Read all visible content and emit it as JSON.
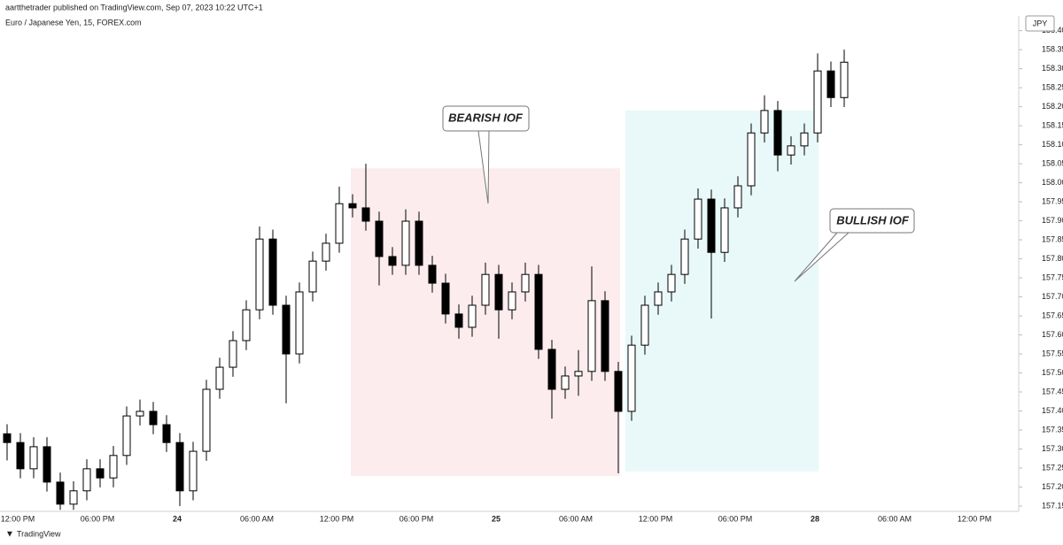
{
  "header": "aartthetrader published on TradingView.com, Sep 07, 2023 10:22 UTC+1",
  "footer": "TradingView",
  "chart_data": {
    "type": "candlestick",
    "title": "Euro / Japanese Yen, 15, FOREX.com",
    "currency": "JPY",
    "up_color": "#ffffff",
    "down_color": "#000000",
    "wick_color": "#000000",
    "open": [
      157.34,
      157.317,
      157.248,
      157.306,
      157.213,
      157.155,
      157.19,
      157.248,
      157.224,
      157.283,
      157.387,
      157.399,
      157.364,
      157.317,
      157.19,
      157.294,
      157.457,
      157.515,
      157.585,
      157.666,
      157.852,
      157.678,
      157.55,
      157.713,
      157.794,
      157.841,
      157.945,
      157.934,
      157.899,
      157.806,
      157.783,
      157.899,
      157.783,
      157.736,
      157.655,
      157.62,
      157.678,
      157.759,
      157.666,
      157.713,
      157.759,
      157.562,
      157.457,
      157.492,
      157.504,
      157.69,
      157.504,
      157.399,
      157.573,
      157.678,
      157.713,
      157.759,
      157.852,
      157.957,
      157.817,
      157.934,
      157.992,
      158.131,
      158.19,
      158.073,
      158.097,
      158.131,
      158.294,
      158.224
    ],
    "high": [
      157.365,
      157.342,
      157.331,
      157.331,
      157.238,
      157.215,
      157.273,
      157.273,
      157.308,
      157.412,
      157.43,
      157.424,
      157.389,
      157.342,
      157.319,
      157.482,
      157.54,
      157.61,
      157.691,
      157.885,
      157.877,
      157.703,
      157.738,
      157.819,
      157.866,
      157.99,
      157.97,
      158.05,
      157.924,
      157.831,
      157.93,
      157.924,
      157.808,
      157.761,
      157.68,
      157.703,
      157.79,
      157.784,
      157.738,
      157.79,
      157.784,
      157.587,
      157.517,
      157.56,
      157.78,
      157.715,
      157.529,
      157.598,
      157.703,
      157.738,
      157.784,
      157.877,
      157.985,
      157.982,
      157.959,
      158.017,
      158.156,
      158.23,
      158.215,
      158.122,
      158.156,
      158.34,
      158.319,
      158.35
    ],
    "low": [
      157.27,
      157.223,
      157.223,
      157.188,
      157.14,
      157.14,
      157.165,
      157.199,
      157.199,
      157.258,
      157.362,
      157.339,
      157.292,
      157.15,
      157.165,
      157.269,
      157.432,
      157.49,
      157.56,
      157.641,
      157.653,
      157.42,
      157.525,
      157.688,
      157.769,
      157.816,
      157.909,
      157.874,
      157.73,
      157.758,
      157.758,
      157.758,
      157.711,
      157.63,
      157.59,
      157.595,
      157.653,
      157.59,
      157.641,
      157.688,
      157.537,
      157.38,
      157.432,
      157.44,
      157.479,
      157.479,
      157.236,
      157.374,
      157.548,
      157.653,
      157.688,
      157.734,
      157.827,
      157.643,
      157.792,
      157.909,
      157.967,
      158.106,
      158.03,
      158.048,
      158.072,
      158.106,
      158.199,
      158.199
    ],
    "close": [
      157.317,
      157.248,
      157.306,
      157.213,
      157.155,
      157.19,
      157.248,
      157.224,
      157.283,
      157.387,
      157.399,
      157.364,
      157.317,
      157.19,
      157.294,
      157.457,
      157.515,
      157.585,
      157.666,
      157.852,
      157.678,
      157.55,
      157.713,
      157.794,
      157.841,
      157.945,
      157.934,
      157.899,
      157.806,
      157.783,
      157.899,
      157.783,
      157.736,
      157.655,
      157.62,
      157.678,
      157.759,
      157.666,
      157.713,
      157.759,
      157.562,
      157.457,
      157.492,
      157.504,
      157.69,
      157.504,
      157.399,
      157.573,
      157.678,
      157.713,
      157.759,
      157.852,
      157.957,
      157.817,
      157.934,
      157.992,
      158.131,
      158.19,
      158.073,
      158.097,
      158.131,
      158.294,
      158.224,
      158.317
    ],
    "ylim": [
      157.136,
      158.434
    ],
    "yticks": [
      {
        "value": 157.15,
        "label": "157.150"
      },
      {
        "value": 157.2,
        "label": "157.200"
      },
      {
        "value": 157.25,
        "label": "157.250"
      },
      {
        "value": 157.3,
        "label": "157.300"
      },
      {
        "value": 157.35,
        "label": "157.350"
      },
      {
        "value": 157.4,
        "label": "157.400"
      },
      {
        "value": 157.45,
        "label": "157.450"
      },
      {
        "value": 157.5,
        "label": "157.500"
      },
      {
        "value": 157.55,
        "label": "157.550"
      },
      {
        "value": 157.6,
        "label": "157.600"
      },
      {
        "value": 157.65,
        "label": "157.650"
      },
      {
        "value": 157.7,
        "label": "157.700"
      },
      {
        "value": 157.75,
        "label": "157.750"
      },
      {
        "value": 157.8,
        "label": "157.800"
      },
      {
        "value": 157.85,
        "label": "157.850"
      },
      {
        "value": 157.9,
        "label": "157.900"
      },
      {
        "value": 157.95,
        "label": "157.950"
      },
      {
        "value": 158.0,
        "label": "158.000"
      },
      {
        "value": 158.05,
        "label": "158.050"
      },
      {
        "value": 158.1,
        "label": "158.100"
      },
      {
        "value": 158.15,
        "label": "158.150"
      },
      {
        "value": 158.2,
        "label": "158.200"
      },
      {
        "value": 158.25,
        "label": "158.250"
      },
      {
        "value": 158.3,
        "label": "158.300"
      },
      {
        "value": 158.35,
        "label": "158.350"
      },
      {
        "value": 158.4,
        "label": "158.400"
      }
    ],
    "x_labels": [
      "12:00 PM",
      "06:00 PM",
      "24",
      "06:00 AM",
      "12:00 PM",
      "06:00 PM",
      "25",
      "06:00 AM",
      "12:00 PM",
      "06:00 PM",
      "28",
      "06:00 AM",
      "12:00 PM"
    ],
    "zones": [
      {
        "label": "BEARISH IOF",
        "top": 158.038,
        "bottom": 157.229,
        "color": "#fcecee"
      },
      {
        "label": "BULLISH IOF",
        "top": 158.19,
        "bottom": 157.241,
        "color": "#e9f8f8"
      }
    ]
  }
}
